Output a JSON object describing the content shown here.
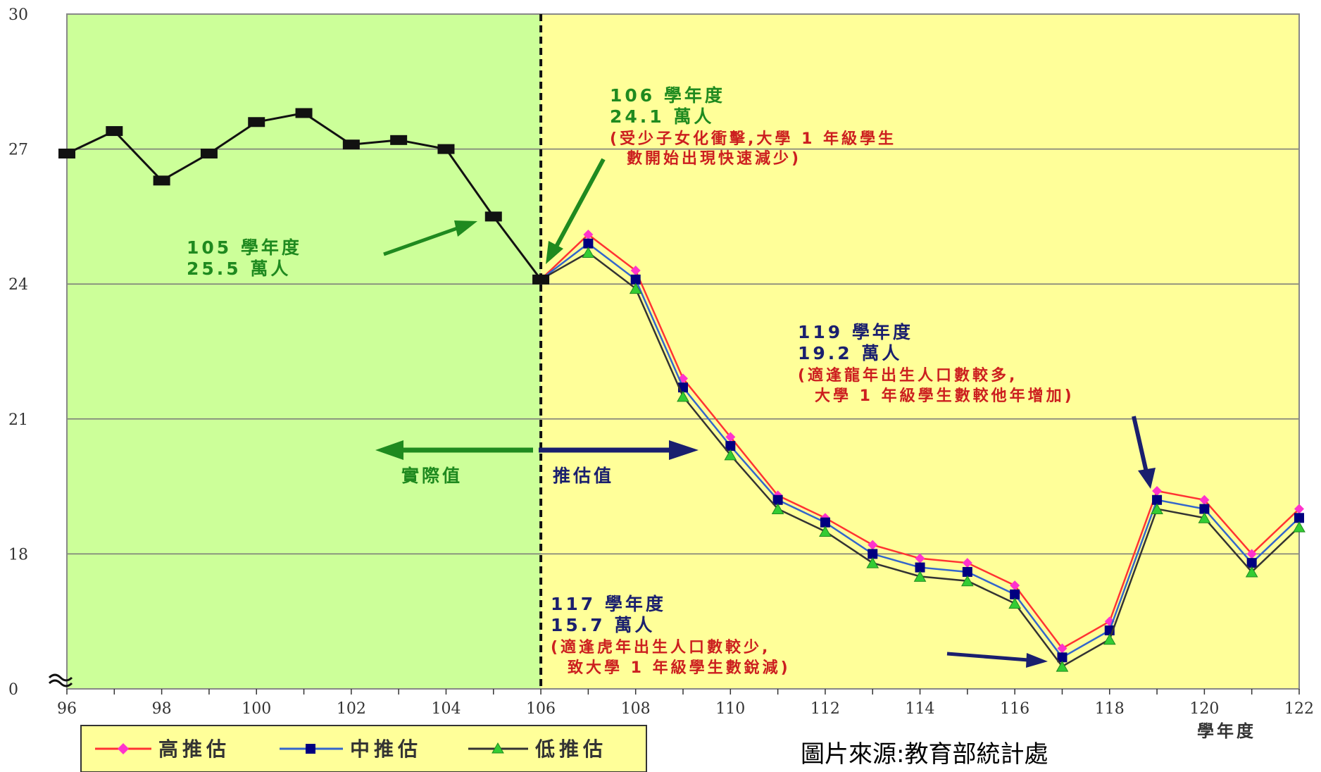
{
  "chart_data": {
    "type": "line",
    "x": [
      96,
      97,
      98,
      99,
      100,
      101,
      102,
      103,
      104,
      105,
      106,
      107,
      108,
      109,
      110,
      111,
      112,
      113,
      114,
      115,
      116,
      117,
      118,
      119,
      120,
      121,
      122
    ],
    "xticks": [
      "96",
      "98",
      "100",
      "102",
      "104",
      "106",
      "108",
      "110",
      "112",
      "114",
      "116",
      "118",
      "120",
      "122"
    ],
    "yticks": [
      "0",
      "18",
      "21",
      "24",
      "27",
      "30"
    ],
    "ylim": [
      15,
      30
    ],
    "y_axis_break": true,
    "xlabel": "學年度",
    "grid": true,
    "actual": {
      "x": [
        96,
        97,
        98,
        99,
        100,
        101,
        102,
        103,
        104,
        105,
        106
      ],
      "values": [
        26.9,
        27.4,
        26.3,
        26.9,
        27.6,
        27.8,
        27.1,
        27.2,
        27.0,
        25.5,
        24.1
      ]
    },
    "series": [
      {
        "name": "高推估",
        "color": "#ff3333",
        "marker": "diamond",
        "marker_color": "#ff33cc",
        "x": [
          106,
          107,
          108,
          109,
          110,
          111,
          112,
          113,
          114,
          115,
          116,
          117,
          118,
          119,
          120,
          121,
          122
        ],
        "values": [
          24.1,
          25.1,
          24.3,
          21.9,
          20.6,
          19.3,
          18.8,
          18.2,
          17.9,
          17.8,
          17.3,
          15.9,
          16.5,
          19.4,
          19.2,
          18.0,
          19.0
        ]
      },
      {
        "name": "中推估",
        "color": "#3366cc",
        "marker": "square",
        "marker_color": "#000080",
        "x": [
          106,
          107,
          108,
          109,
          110,
          111,
          112,
          113,
          114,
          115,
          116,
          117,
          118,
          119,
          120,
          121,
          122
        ],
        "values": [
          24.1,
          24.9,
          24.1,
          21.7,
          20.4,
          19.2,
          18.7,
          18.0,
          17.7,
          17.6,
          17.1,
          15.7,
          16.3,
          19.2,
          19.0,
          17.8,
          18.8
        ]
      },
      {
        "name": "低推估",
        "color": "#333333",
        "marker": "triangle",
        "marker_color": "#33cc33",
        "x": [
          106,
          107,
          108,
          109,
          110,
          111,
          112,
          113,
          114,
          115,
          116,
          117,
          118,
          119,
          120,
          121,
          122
        ],
        "values": [
          24.1,
          24.7,
          23.9,
          21.5,
          20.2,
          19.0,
          18.5,
          17.8,
          17.5,
          17.4,
          16.9,
          15.5,
          16.1,
          19.0,
          18.8,
          17.6,
          18.6
        ]
      }
    ],
    "regions": {
      "actual_label": "實際值",
      "projection_label": "推估值",
      "divider_x": 106
    },
    "annotations": {
      "a105": {
        "line1": "105 學年度",
        "line2": "25.5 萬人"
      },
      "a106": {
        "line1": "106 學年度",
        "line2": "24.1 萬人",
        "note1": "(受少子女化衝擊,大學 1 年級學生",
        "note2": "數開始出現快速減少)"
      },
      "a119": {
        "line1": "119 學年度",
        "line2": "19.2 萬人",
        "note1": "(適逢龍年出生人口數較多,",
        "note2": "大學 1 年級學生數較他年增加)"
      },
      "a117": {
        "line1": "117 學年度",
        "line2": "15.7 萬人",
        "note1": "(適逢虎年出生人口數較少,",
        "note2": "致大學 1 年級學生數銳減)"
      }
    },
    "colors": {
      "actual_bg": "#ccff99",
      "projection_bg": "#ffff99",
      "green": "#1f8a1f",
      "navy": "#1a1f6e",
      "red": "#cc1f1f"
    }
  },
  "legend": {
    "items": [
      "高推估",
      "中推估",
      "低推估"
    ]
  },
  "source": "圖片來源:教育部統計處"
}
